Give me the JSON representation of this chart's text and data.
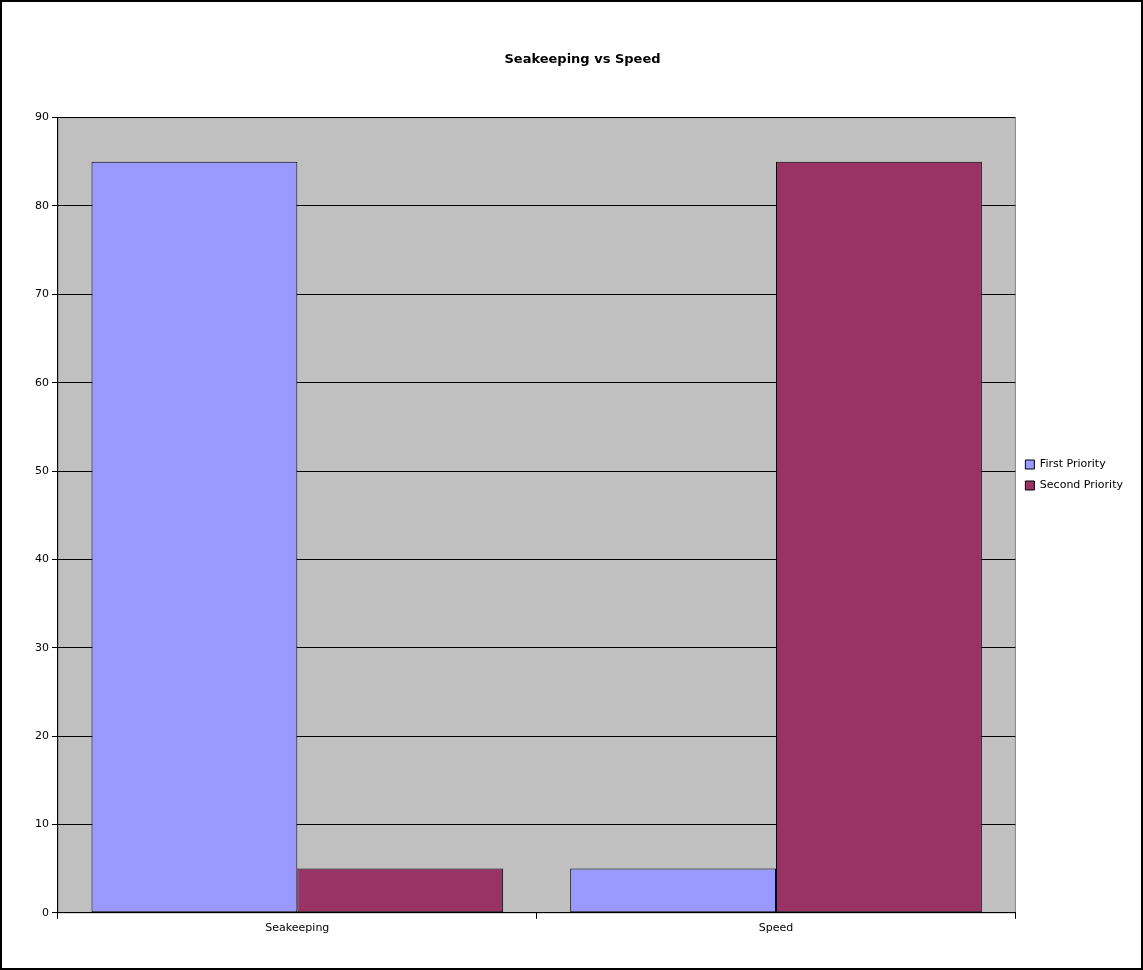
{
  "chart_data": {
    "type": "bar",
    "title": "Seakeeping vs Speed",
    "categories": [
      "Seakeeping",
      "Speed"
    ],
    "series": [
      {
        "name": "First Priority",
        "color": "#9999ff",
        "values": [
          85,
          5
        ]
      },
      {
        "name": "Second Priority",
        "color": "#993366",
        "values": [
          5,
          85
        ]
      }
    ],
    "ylim": [
      0,
      90
    ],
    "yticks": [
      0,
      10,
      20,
      30,
      40,
      50,
      60,
      70,
      80,
      90
    ],
    "grid": "y",
    "legend": "right"
  }
}
